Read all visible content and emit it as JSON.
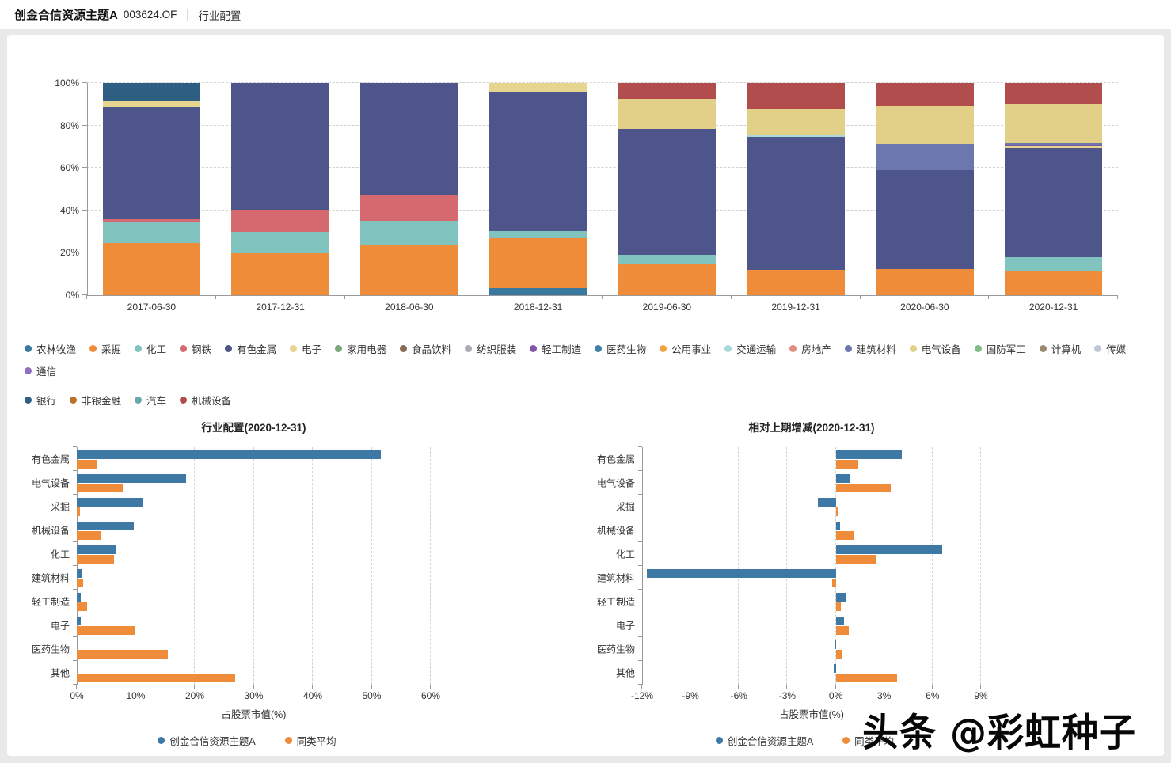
{
  "header": {
    "title": "创金合信资源主题A",
    "code": "003624.OF",
    "section": "行业配置"
  },
  "colors": {
    "fund_series": "#3E79A6",
    "average_series": "#EE8C3A",
    "axis_line": "#9A9A9A",
    "grid_line": "#D2D2D2",
    "industries": {
      "农林牧渔": "#3A78A0",
      "采掘": "#EE8C3A",
      "化工": "#80C3BF",
      "钢铁": "#D6686F",
      "有色金属": "#4D558A",
      "电子": "#E5D58E",
      "家用电器": "#7BA87D",
      "食品饮料": "#8B6B52",
      "纺织服装": "#A9ACB3",
      "轻工制造": "#7E57A8",
      "医药生物": "#4080A8",
      "公用事业": "#F0A340",
      "交通运输": "#A9D8D8",
      "房地产": "#E38B7E",
      "建筑材料": "#6C76AF",
      "电气设备": "#E2D089",
      "国防军工": "#80BB86",
      "计算机": "#9B8773",
      "传媒": "#BDC7D5",
      "通信": "#8F70BE",
      "银行": "#2E5F82",
      "非银金融": "#BA732C",
      "汽车": "#6CA8AA",
      "机械设备": "#B14D4D"
    }
  },
  "legend": {
    "items": [
      "农林牧渔",
      "采掘",
      "化工",
      "钢铁",
      "有色金属",
      "电子",
      "家用电器",
      "食品饮料",
      "纺织服装",
      "轻工制造",
      "医药生物",
      "公用事业",
      "交通运输",
      "房地产",
      "建筑材料",
      "电气设备",
      "国防军工",
      "计算机",
      "传媒",
      "通信",
      "银行",
      "非银金融",
      "汽车",
      "机械设备"
    ]
  },
  "chart_data": [
    {
      "id": "stacked",
      "type": "bar",
      "stacked": true,
      "orientation": "vertical",
      "title": "",
      "categories": [
        "2017-06-30",
        "2017-12-31",
        "2018-06-30",
        "2018-12-31",
        "2019-06-30",
        "2019-12-31",
        "2020-06-30",
        "2020-12-31"
      ],
      "series": [
        {
          "name": "农林牧渔",
          "values": [
            0,
            0,
            0,
            3.5,
            0,
            0,
            0,
            0
          ]
        },
        {
          "name": "采掘",
          "values": [
            24.6,
            19.7,
            24.0,
            23.5,
            14.4,
            12.1,
            12.3,
            11.3
          ]
        },
        {
          "name": "化工",
          "values": [
            9.7,
            10.3,
            11.2,
            3.1,
            4.6,
            0,
            0,
            6.6
          ]
        },
        {
          "name": "钢铁",
          "values": [
            1.5,
            10.2,
            11.8,
            0,
            0,
            0,
            0,
            0
          ]
        },
        {
          "name": "有色金属",
          "values": [
            53.1,
            59.8,
            53.0,
            65.8,
            59.5,
            62.7,
            46.7,
            51.5
          ]
        },
        {
          "name": "电子",
          "values": [
            2.8,
            0,
            0,
            4.1,
            0,
            0,
            0,
            0.7
          ]
        },
        {
          "name": "轻工制造",
          "values": [
            0,
            0,
            0,
            0,
            0,
            0,
            0,
            0.7
          ]
        },
        {
          "name": "交通运输",
          "values": [
            0,
            0,
            0,
            0,
            0,
            0.6,
            0,
            0
          ]
        },
        {
          "name": "建筑材料",
          "values": [
            0,
            0,
            0,
            0,
            0,
            0,
            12.4,
            1.0
          ]
        },
        {
          "name": "电气设备",
          "values": [
            0,
            0,
            0,
            0,
            14.0,
            12.4,
            17.8,
            18.5
          ]
        },
        {
          "name": "银行",
          "values": [
            8.3,
            0,
            0,
            0,
            0,
            0,
            0,
            0
          ]
        },
        {
          "name": "机械设备",
          "values": [
            0,
            0,
            0,
            0,
            7.5,
            12.2,
            10.8,
            9.7
          ]
        }
      ],
      "ylim": [
        0,
        100
      ],
      "yticks": {
        "values": [
          0,
          20,
          40,
          60,
          80,
          100
        ],
        "labels": [
          "0%",
          "20%",
          "40%",
          "60%",
          "80%",
          "100%"
        ]
      },
      "grid": "horizontal-dashed",
      "legend_position": "below"
    },
    {
      "id": "allocation",
      "type": "bar",
      "orientation": "horizontal",
      "title": "行业配置(2020-12-31)",
      "categories": [
        "有色金属",
        "电气设备",
        "采掘",
        "机械设备",
        "化工",
        "建筑材料",
        "轻工制造",
        "电子",
        "医药生物",
        "其他"
      ],
      "series": [
        {
          "name": "创金合信资源主题A",
          "values": [
            51.5,
            18.5,
            11.3,
            9.7,
            6.6,
            1.0,
            0.7,
            0.7,
            0,
            0
          ]
        },
        {
          "name": "同类平均",
          "values": [
            3.3,
            7.8,
            0.6,
            4.2,
            6.3,
            1.1,
            1.8,
            10.0,
            15.5,
            26.8
          ]
        }
      ],
      "xlim": [
        0,
        60
      ],
      "xticks": {
        "values": [
          0,
          10,
          20,
          30,
          40,
          50,
          60
        ],
        "labels": [
          "0%",
          "10%",
          "20%",
          "30%",
          "40%",
          "50%",
          "60%"
        ]
      },
      "xlabel": "占股票市值(%)",
      "grid": "vertical-dashed",
      "legend_position": "below"
    },
    {
      "id": "change",
      "type": "bar",
      "orientation": "horizontal",
      "title": "相对上期增减(2020-12-31)",
      "categories": [
        "有色金属",
        "电气设备",
        "采掘",
        "机械设备",
        "化工",
        "建筑材料",
        "轻工制造",
        "电子",
        "医药生物",
        "其他"
      ],
      "series": [
        {
          "name": "创金合信资源主题A",
          "values": [
            4.1,
            0.9,
            -1.1,
            0.25,
            6.6,
            -11.7,
            0.6,
            0.5,
            -0.1,
            -0.15
          ]
        },
        {
          "name": "同类平均",
          "values": [
            1.4,
            3.4,
            0.1,
            1.1,
            2.5,
            -0.2,
            0.3,
            0.8,
            0.35,
            3.8
          ]
        }
      ],
      "xlim": [
        -12,
        9
      ],
      "xticks": {
        "values": [
          -12,
          -9,
          -6,
          -3,
          0,
          3,
          6,
          9
        ],
        "labels": [
          "-12%",
          "-9%",
          "-6%",
          "-3%",
          "0%",
          "3%",
          "6%",
          "9%"
        ]
      },
      "xlabel": "占股票市值(%)",
      "grid": "vertical-dashed",
      "legend_position": "below"
    }
  ],
  "watermark": "头条 @彩虹种子"
}
